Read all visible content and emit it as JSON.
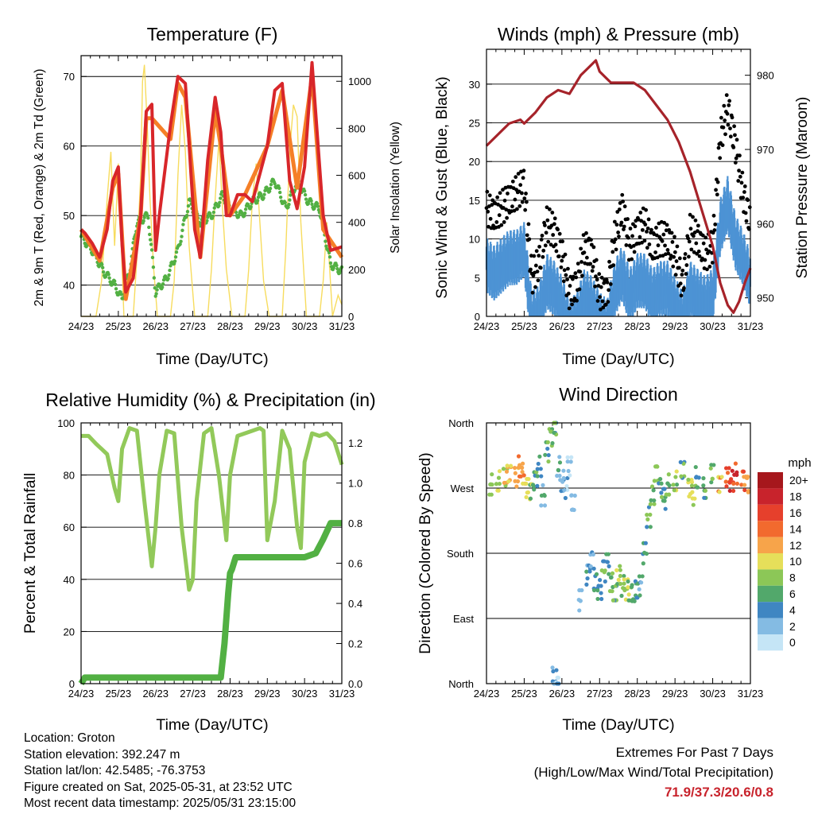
{
  "x_ticks": [
    "24/23",
    "25/23",
    "26/23",
    "27/23",
    "28/23",
    "29/23",
    "30/23",
    "31/23"
  ],
  "x_axis_label": "Time (Day/UTC)",
  "chart_data": [
    {
      "type": "line",
      "title": "Temperature (F)",
      "xlabel": "Time (Day/UTC)",
      "ylabel": "2m & 9m T (Red, Orange) & 2m Td (Green)",
      "y2label": "Solar Insolation (Yellow)",
      "ylim": [
        35.5,
        73
      ],
      "y2lim": [
        0,
        1109
      ],
      "yticks": [
        40,
        50,
        60,
        70
      ],
      "y2ticks": [
        0,
        200,
        400,
        600,
        800,
        1000
      ],
      "x_units": "days since 24/23 UTC",
      "colors": {
        "temp2m": "#d8262a",
        "temp9m": "#f57f27",
        "dewpoint": "#52b043",
        "solar": "#f7dc5e"
      },
      "series": [
        {
          "name": "2m T",
          "color": "red",
          "x": [
            0,
            0.1,
            0.3,
            0.5,
            0.7,
            0.85,
            1.0,
            1.1,
            1.2,
            1.4,
            1.6,
            1.75,
            1.9,
            2.0,
            2.1,
            2.4,
            2.6,
            2.8,
            2.95,
            3.05,
            3.2,
            3.4,
            3.6,
            3.75,
            3.9,
            4.0,
            4.2,
            4.4,
            4.6,
            4.8,
            5.0,
            5.2,
            5.4,
            5.6,
            5.8,
            6.0,
            6.2,
            6.5,
            6.7,
            7.0
          ],
          "y": [
            48,
            47.5,
            46,
            44,
            48,
            55,
            57,
            46,
            39,
            41,
            50,
            65,
            66,
            45,
            50,
            63,
            70,
            69,
            56,
            48,
            44,
            58,
            67,
            62,
            50,
            50,
            53,
            53,
            52,
            56,
            60,
            68,
            69,
            55,
            51,
            57,
            72,
            50,
            45,
            45.5
          ]
        },
        {
          "name": "9m T",
          "color": "orange",
          "x": [
            0,
            0.5,
            0.85,
            1.0,
            1.2,
            1.6,
            1.75,
            1.9,
            2.4,
            2.6,
            2.8,
            3.2,
            3.6,
            3.75,
            4.0,
            4.4,
            5.0,
            5.4,
            5.8,
            6.2,
            6.5,
            7.0
          ],
          "y": [
            48,
            43.5,
            54,
            56,
            38,
            50,
            64,
            64,
            61,
            69,
            67,
            44,
            65,
            60,
            50,
            53,
            60,
            68,
            54,
            70,
            48,
            44
          ]
        },
        {
          "name": "2m Td",
          "color": "green",
          "x": [
            0,
            0.3,
            0.6,
            0.9,
            1.1,
            1.3,
            1.5,
            1.8,
            2.0,
            2.3,
            2.6,
            2.9,
            3.2,
            3.5,
            3.8,
            4.0,
            4.3,
            4.6,
            4.9,
            5.2,
            5.5,
            5.8,
            6.1,
            6.4,
            6.7,
            7.0
          ],
          "y": [
            47,
            45,
            42,
            40,
            38,
            42,
            49,
            50,
            39,
            41,
            45,
            52,
            49,
            50,
            53,
            51,
            50,
            52,
            53,
            55,
            51,
            55,
            52,
            51,
            43,
            42
          ]
        },
        {
          "name": "Solar Insolation",
          "color": "yellow",
          "axis": "right",
          "x": [
            0,
            0.4,
            0.55,
            0.7,
            0.8,
            0.9,
            1.0,
            1.15,
            1.4,
            1.5,
            1.6,
            1.65,
            1.7,
            1.78,
            1.85,
            1.95,
            2.05,
            2.4,
            2.5,
            2.6,
            2.7,
            2.8,
            2.9,
            3.05,
            3.4,
            3.5,
            3.6,
            3.7,
            3.8,
            3.9,
            4.05,
            4.4,
            4.5,
            4.6,
            4.7,
            4.8,
            4.9,
            5.05,
            5.4,
            5.5,
            5.6,
            5.7,
            5.8,
            5.9,
            6.05,
            6.4,
            6.5,
            6.6,
            6.75,
            6.9,
            7.0
          ],
          "y": [
            0,
            0,
            150,
            500,
            700,
            300,
            650,
            0,
            0,
            250,
            600,
            1000,
            1070,
            800,
            500,
            200,
            0,
            0,
            150,
            600,
            900,
            700,
            300,
            0,
            0,
            200,
            500,
            750,
            450,
            200,
            0,
            0,
            200,
            500,
            650,
            400,
            150,
            0,
            0,
            300,
            700,
            900,
            850,
            400,
            0,
            0,
            150,
            400,
            0,
            90,
            50
          ]
        }
      ]
    },
    {
      "type": "scatter",
      "title": "Winds (mph) & Pressure (mb)",
      "xlabel": "Time (Day/UTC)",
      "ylabel": "Sonic Wind & Gust (Blue, Black)",
      "y2label": "Station Pressure (Maroon)",
      "ylim": [
        0,
        34.5
      ],
      "y2lim": [
        947.5,
        983.5
      ],
      "yticks": [
        0,
        5,
        10,
        15,
        20,
        25,
        30
      ],
      "y2ticks": [
        950,
        960,
        970,
        980
      ],
      "x_units": "days since 24/23 UTC",
      "colors": {
        "wind": "#4d93d4",
        "gust": "#000000",
        "pressure": "#a6232a"
      },
      "series": [
        {
          "name": "Sonic Wind",
          "color": "blue",
          "x": [
            0,
            0.2,
            0.4,
            0.6,
            0.8,
            1.0,
            1.2,
            1.4,
            1.6,
            1.8,
            2.0,
            2.2,
            2.4,
            2.6,
            2.8,
            3.0,
            3.2,
            3.4,
            3.6,
            3.8,
            4.0,
            4.2,
            4.4,
            4.6,
            4.8,
            5.0,
            5.2,
            5.4,
            5.6,
            5.8,
            6.0,
            6.2,
            6.4,
            6.6,
            6.8,
            7.0
          ],
          "y": [
            9,
            8,
            9,
            10,
            10,
            11,
            2,
            3,
            7,
            6,
            4,
            1,
            2,
            5,
            4,
            2,
            1,
            6,
            8,
            5,
            7,
            7,
            5,
            6,
            6,
            4,
            2,
            6,
            5,
            4,
            5,
            14,
            17,
            12,
            10,
            7
          ]
        },
        {
          "name": "Gust",
          "color": "black",
          "x": [
            0,
            0.2,
            0.4,
            0.6,
            0.8,
            1.0,
            1.2,
            1.4,
            1.6,
            1.8,
            2.0,
            2.2,
            2.4,
            2.6,
            2.8,
            3.0,
            3.2,
            3.4,
            3.6,
            3.8,
            4.0,
            4.2,
            4.4,
            4.6,
            4.8,
            5.0,
            5.2,
            5.4,
            5.6,
            5.8,
            6.0,
            6.2,
            6.4,
            6.6,
            6.8,
            7.0
          ],
          "y": [
            14,
            13,
            14,
            15,
            16,
            17,
            5,
            7,
            12,
            11,
            8,
            3,
            4,
            9,
            8,
            3,
            3,
            10,
            14,
            9,
            11,
            12,
            9,
            10,
            10,
            8,
            4,
            11,
            10,
            8,
            9,
            23,
            27,
            22,
            16,
            12
          ]
        },
        {
          "name": "Station Pressure",
          "color": "maroon",
          "axis": "right",
          "x": [
            0,
            0.3,
            0.6,
            0.9,
            1.0,
            1.3,
            1.6,
            1.9,
            2.2,
            2.5,
            2.7,
            2.9,
            3.0,
            3.3,
            3.6,
            3.9,
            4.2,
            4.5,
            4.8,
            5.1,
            5.4,
            5.7,
            6.0,
            6.2,
            6.4,
            6.55,
            6.7,
            6.85,
            7.0
          ],
          "y": [
            970.5,
            972,
            973.5,
            974,
            973.5,
            975,
            977,
            978,
            977.5,
            980,
            981,
            982,
            980.5,
            979,
            979,
            979,
            978,
            976,
            974,
            971,
            967,
            962,
            957,
            952,
            949,
            948,
            949.5,
            952,
            954
          ]
        }
      ]
    },
    {
      "type": "line",
      "title": "Relative Humidity (%) & Precipitation (in)",
      "xlabel": "Time (Day/UTC)",
      "ylabel": "Percent & Total Rainfall",
      "ylim": [
        0,
        100
      ],
      "y2lim": [
        0,
        1.3
      ],
      "yticks": [
        0,
        20,
        40,
        60,
        80,
        100
      ],
      "y2ticks": [
        0.0,
        0.2,
        0.4,
        0.6,
        0.8,
        1.0,
        1.2
      ],
      "x_units": "days since 24/23 UTC",
      "colors": {
        "rh": "#92c95a",
        "precip": "#52b043"
      },
      "series": [
        {
          "name": "Relative Humidity",
          "color": "light green",
          "x": [
            0,
            0.2,
            0.4,
            0.7,
            0.9,
            1.0,
            1.1,
            1.3,
            1.5,
            1.7,
            1.9,
            2.0,
            2.1,
            2.3,
            2.5,
            2.7,
            2.9,
            3.0,
            3.1,
            3.3,
            3.5,
            3.7,
            3.9,
            4.0,
            4.2,
            4.4,
            4.6,
            4.8,
            4.9,
            5.0,
            5.2,
            5.4,
            5.6,
            5.8,
            5.9,
            6.0,
            6.2,
            6.4,
            6.6,
            6.8,
            7.0
          ],
          "y": [
            95,
            95,
            92,
            88,
            75,
            70,
            90,
            98,
            97,
            70,
            45,
            60,
            80,
            97,
            96,
            60,
            36,
            40,
            70,
            96,
            98,
            80,
            55,
            80,
            95,
            96,
            97,
            98,
            97,
            55,
            70,
            97,
            90,
            60,
            52,
            85,
            96,
            95,
            96,
            93,
            84
          ]
        },
        {
          "name": "Total Precipitation",
          "color": "green",
          "axis": "right",
          "x": [
            0,
            0.1,
            1.0,
            2.0,
            3.0,
            3.75,
            3.85,
            3.95,
            4.0,
            4.05,
            4.15,
            4.3,
            4.6,
            5.0,
            5.5,
            6.0,
            6.3,
            6.5,
            6.7,
            7.0
          ],
          "y": [
            0,
            0.03,
            0.03,
            0.03,
            0.03,
            0.03,
            0.2,
            0.45,
            0.55,
            0.57,
            0.63,
            0.63,
            0.63,
            0.63,
            0.63,
            0.63,
            0.65,
            0.72,
            0.8,
            0.8
          ]
        }
      ]
    },
    {
      "type": "scatter",
      "title": "Wind Direction",
      "xlabel": "Time (Day/UTC)",
      "ylabel": "Direction (Colored By Speed)",
      "yticks": [
        "North",
        "East",
        "South",
        "West",
        "North"
      ],
      "ytick_degrees": [
        0,
        90,
        180,
        270,
        360
      ],
      "x_units": "days since 24/23 UTC",
      "legend": {
        "title": "mph",
        "placement": "right",
        "labels": [
          "20+",
          "18",
          "16",
          "14",
          "12",
          "10",
          "8",
          "6",
          "4",
          "2",
          "0"
        ],
        "colors": [
          "#a6171c",
          "#c8232c",
          "#e6402c",
          "#f26a2e",
          "#f7a44a",
          "#e6df5a",
          "#8cc757",
          "#52a86b",
          "#3f86c2",
          "#84bbe3",
          "#c5e5f6"
        ]
      },
      "points": [
        {
          "x": 0.1,
          "dir": 275,
          "mph": 8
        },
        {
          "x": 0.3,
          "dir": 280,
          "mph": 9
        },
        {
          "x": 0.5,
          "dir": 285,
          "mph": 10
        },
        {
          "x": 0.6,
          "dir": 290,
          "mph": 11
        },
        {
          "x": 0.8,
          "dir": 285,
          "mph": 12
        },
        {
          "x": 0.9,
          "dir": 300,
          "mph": 13
        },
        {
          "x": 1.0,
          "dir": 290,
          "mph": 12
        },
        {
          "x": 1.1,
          "dir": 270,
          "mph": 10
        },
        {
          "x": 1.2,
          "dir": 265,
          "mph": 8
        },
        {
          "x": 1.3,
          "dir": 280,
          "mph": 6
        },
        {
          "x": 1.4,
          "dir": 300,
          "mph": 5
        },
        {
          "x": 1.5,
          "dir": 260,
          "mph": 4
        },
        {
          "x": 1.6,
          "dir": 320,
          "mph": 6
        },
        {
          "x": 1.7,
          "dir": 340,
          "mph": 7
        },
        {
          "x": 1.8,
          "dir": 355,
          "mph": 6
        },
        {
          "x": 1.9,
          "dir": 300,
          "mph": 4
        },
        {
          "x": 2.0,
          "dir": 280,
          "mph": 3
        },
        {
          "x": 2.1,
          "dir": 270,
          "mph": 2
        },
        {
          "x": 2.2,
          "dir": 300,
          "mph": 1
        },
        {
          "x": 2.3,
          "dir": 250,
          "mph": 2
        },
        {
          "x": 1.8,
          "dir": 10,
          "mph": 3
        },
        {
          "x": 1.9,
          "dir": 5,
          "mph": 2
        },
        {
          "x": 2.5,
          "dir": 115,
          "mph": 2
        },
        {
          "x": 2.7,
          "dir": 150,
          "mph": 4
        },
        {
          "x": 2.8,
          "dir": 170,
          "mph": 3
        },
        {
          "x": 2.9,
          "dir": 140,
          "mph": 5
        },
        {
          "x": 3.0,
          "dir": 130,
          "mph": 4
        },
        {
          "x": 3.1,
          "dir": 155,
          "mph": 6
        },
        {
          "x": 3.2,
          "dir": 165,
          "mph": 5
        },
        {
          "x": 3.3,
          "dir": 140,
          "mph": 7
        },
        {
          "x": 3.4,
          "dir": 125,
          "mph": 6
        },
        {
          "x": 3.5,
          "dir": 150,
          "mph": 8
        },
        {
          "x": 3.6,
          "dir": 135,
          "mph": 7
        },
        {
          "x": 3.7,
          "dir": 130,
          "mph": 9
        },
        {
          "x": 3.8,
          "dir": 128,
          "mph": 8
        },
        {
          "x": 3.9,
          "dir": 125,
          "mph": 6
        },
        {
          "x": 4.0,
          "dir": 130,
          "mph": 5
        },
        {
          "x": 4.1,
          "dir": 135,
          "mph": 4
        },
        {
          "x": 4.2,
          "dir": 180,
          "mph": 5
        },
        {
          "x": 4.3,
          "dir": 230,
          "mph": 6
        },
        {
          "x": 4.4,
          "dir": 260,
          "mph": 7
        },
        {
          "x": 4.5,
          "dir": 290,
          "mph": 8
        },
        {
          "x": 4.6,
          "dir": 270,
          "mph": 6
        },
        {
          "x": 4.7,
          "dir": 255,
          "mph": 5
        },
        {
          "x": 4.8,
          "dir": 275,
          "mph": 7
        },
        {
          "x": 5.0,
          "dir": 280,
          "mph": 8
        },
        {
          "x": 5.2,
          "dir": 295,
          "mph": 6
        },
        {
          "x": 5.4,
          "dir": 270,
          "mph": 10
        },
        {
          "x": 5.5,
          "dir": 260,
          "mph": 9
        },
        {
          "x": 5.6,
          "dir": 285,
          "mph": 5
        },
        {
          "x": 5.8,
          "dir": 270,
          "mph": 6
        },
        {
          "x": 6.0,
          "dir": 290,
          "mph": 7
        },
        {
          "x": 6.2,
          "dir": 275,
          "mph": 12
        },
        {
          "x": 6.4,
          "dir": 285,
          "mph": 15
        },
        {
          "x": 6.5,
          "dir": 280,
          "mph": 17
        },
        {
          "x": 6.6,
          "dir": 290,
          "mph": 16
        },
        {
          "x": 6.8,
          "dir": 280,
          "mph": 14
        },
        {
          "x": 6.9,
          "dir": 275,
          "mph": 12
        }
      ]
    }
  ],
  "info": {
    "location": "Location: Groton",
    "elevation": "Station elevation: 392.247 m",
    "latlon": "Station lat/lon: 42.5485; -76.3753",
    "created": "Figure created on Sat, 2025-05-31, at 23:52 UTC",
    "recent": "Most recent data timestamp: 2025/05/31 23:15:00"
  },
  "extremes": {
    "title": "Extremes For Past 7 Days",
    "subtitle": "(High/Low/Max Wind/Total Precipitation)",
    "values": "71.9/37.3/20.6/0.8"
  }
}
